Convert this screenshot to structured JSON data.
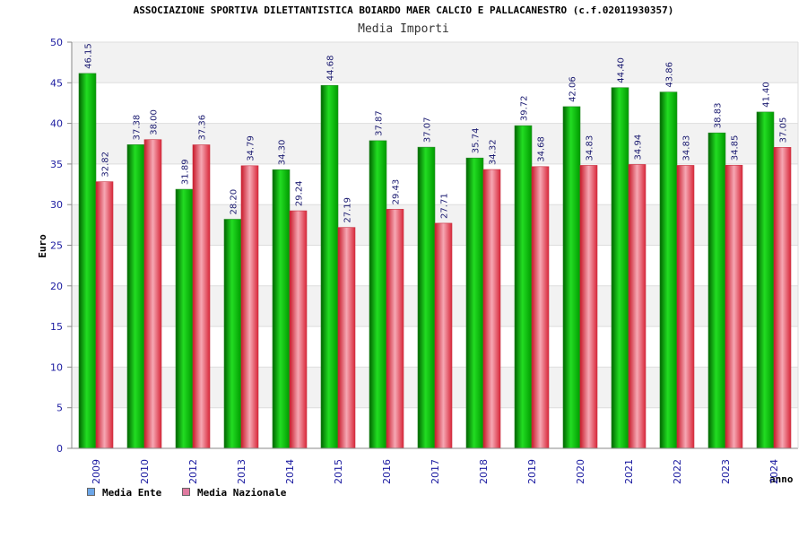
{
  "chart_data": {
    "type": "bar",
    "title": "ASSOCIAZIONE SPORTIVA DILETTANTISTICA BOIARDO MAER CALCIO E PALLACANESTRO (c.f.02011930357)",
    "subtitle": "Media Importi",
    "xlabel": "anno",
    "ylabel": "Euro",
    "ylim": [
      0,
      50
    ],
    "ytick_step": 5,
    "categories": [
      "2009",
      "2010",
      "2012",
      "2013",
      "2014",
      "2015",
      "2016",
      "2017",
      "2018",
      "2019",
      "2020",
      "2021",
      "2022",
      "2023",
      "2024"
    ],
    "series": [
      {
        "name": "Media Ente",
        "color": "#00b000",
        "legend_color": "#6ca6e8",
        "values": [
          46.15,
          37.38,
          31.89,
          28.2,
          34.3,
          44.68,
          37.87,
          37.07,
          35.74,
          39.72,
          42.06,
          44.4,
          43.86,
          38.83,
          41.4
        ]
      },
      {
        "name": "Media Nazionale",
        "color": "#e8404f",
        "legend_color": "#e07aa0",
        "values": [
          32.82,
          38.0,
          37.36,
          34.79,
          29.24,
          27.19,
          29.43,
          27.71,
          34.32,
          34.68,
          34.83,
          34.94,
          34.83,
          34.85,
          37.05
        ]
      }
    ],
    "grid": true,
    "legend_position": "bottom-left"
  }
}
